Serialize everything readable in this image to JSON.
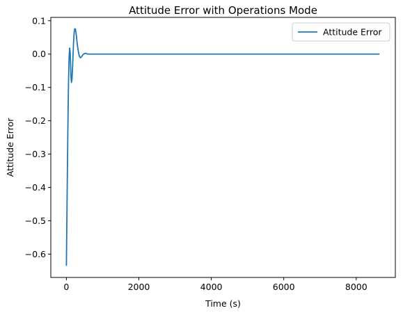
{
  "chart_data": {
    "type": "line",
    "title": "Attitude Error with Operations Mode",
    "xlabel": "Time (s)",
    "ylabel": "Attitude Error",
    "xlim": [
      -430,
      9080
    ],
    "ylim": [
      -0.67,
      0.11
    ],
    "xticks": [
      0,
      2000,
      4000,
      6000,
      8000
    ],
    "xtick_labels": [
      "0",
      "2000",
      "4000",
      "6000",
      "8000"
    ],
    "yticks": [
      -0.6,
      -0.5,
      -0.4,
      -0.3,
      -0.2,
      -0.1,
      0.0,
      0.1
    ],
    "ytick_labels": [
      "−0.6",
      "−0.5",
      "−0.4",
      "−0.3",
      "−0.2",
      "−0.1",
      "0.0",
      "0.1"
    ],
    "grid": false,
    "legend_position": "upper-right",
    "series": [
      {
        "name": "Attitude Error",
        "color": "#1f77b4",
        "x": [
          0,
          15,
          30,
          45,
          60,
          75,
          90,
          105,
          115,
          125,
          140,
          155,
          170,
          185,
          200,
          215,
          230,
          250,
          270,
          290,
          310,
          330,
          350,
          370,
          390,
          410,
          430,
          450,
          470,
          490,
          510,
          530,
          560,
          600,
          650,
          700,
          750,
          800,
          900,
          1000,
          1500,
          2000,
          3000,
          4000,
          5000,
          6000,
          7000,
          8000,
          8640
        ],
        "y": [
          -0.635,
          -0.48,
          -0.33,
          -0.19,
          -0.08,
          -0.01,
          0.018,
          0.005,
          -0.03,
          -0.065,
          -0.085,
          -0.075,
          -0.04,
          0.0,
          0.04,
          0.065,
          0.076,
          0.075,
          0.06,
          0.04,
          0.022,
          0.008,
          -0.003,
          -0.009,
          -0.011,
          -0.009,
          -0.006,
          -0.003,
          -0.001,
          0.001,
          0.002,
          0.002,
          0.001,
          0.0,
          0.0,
          0.0,
          0.0,
          0.0,
          0.0,
          0.0,
          0.0,
          0.0,
          0.0,
          0.0,
          0.0,
          0.0,
          0.0,
          0.0,
          0.0
        ]
      }
    ]
  }
}
